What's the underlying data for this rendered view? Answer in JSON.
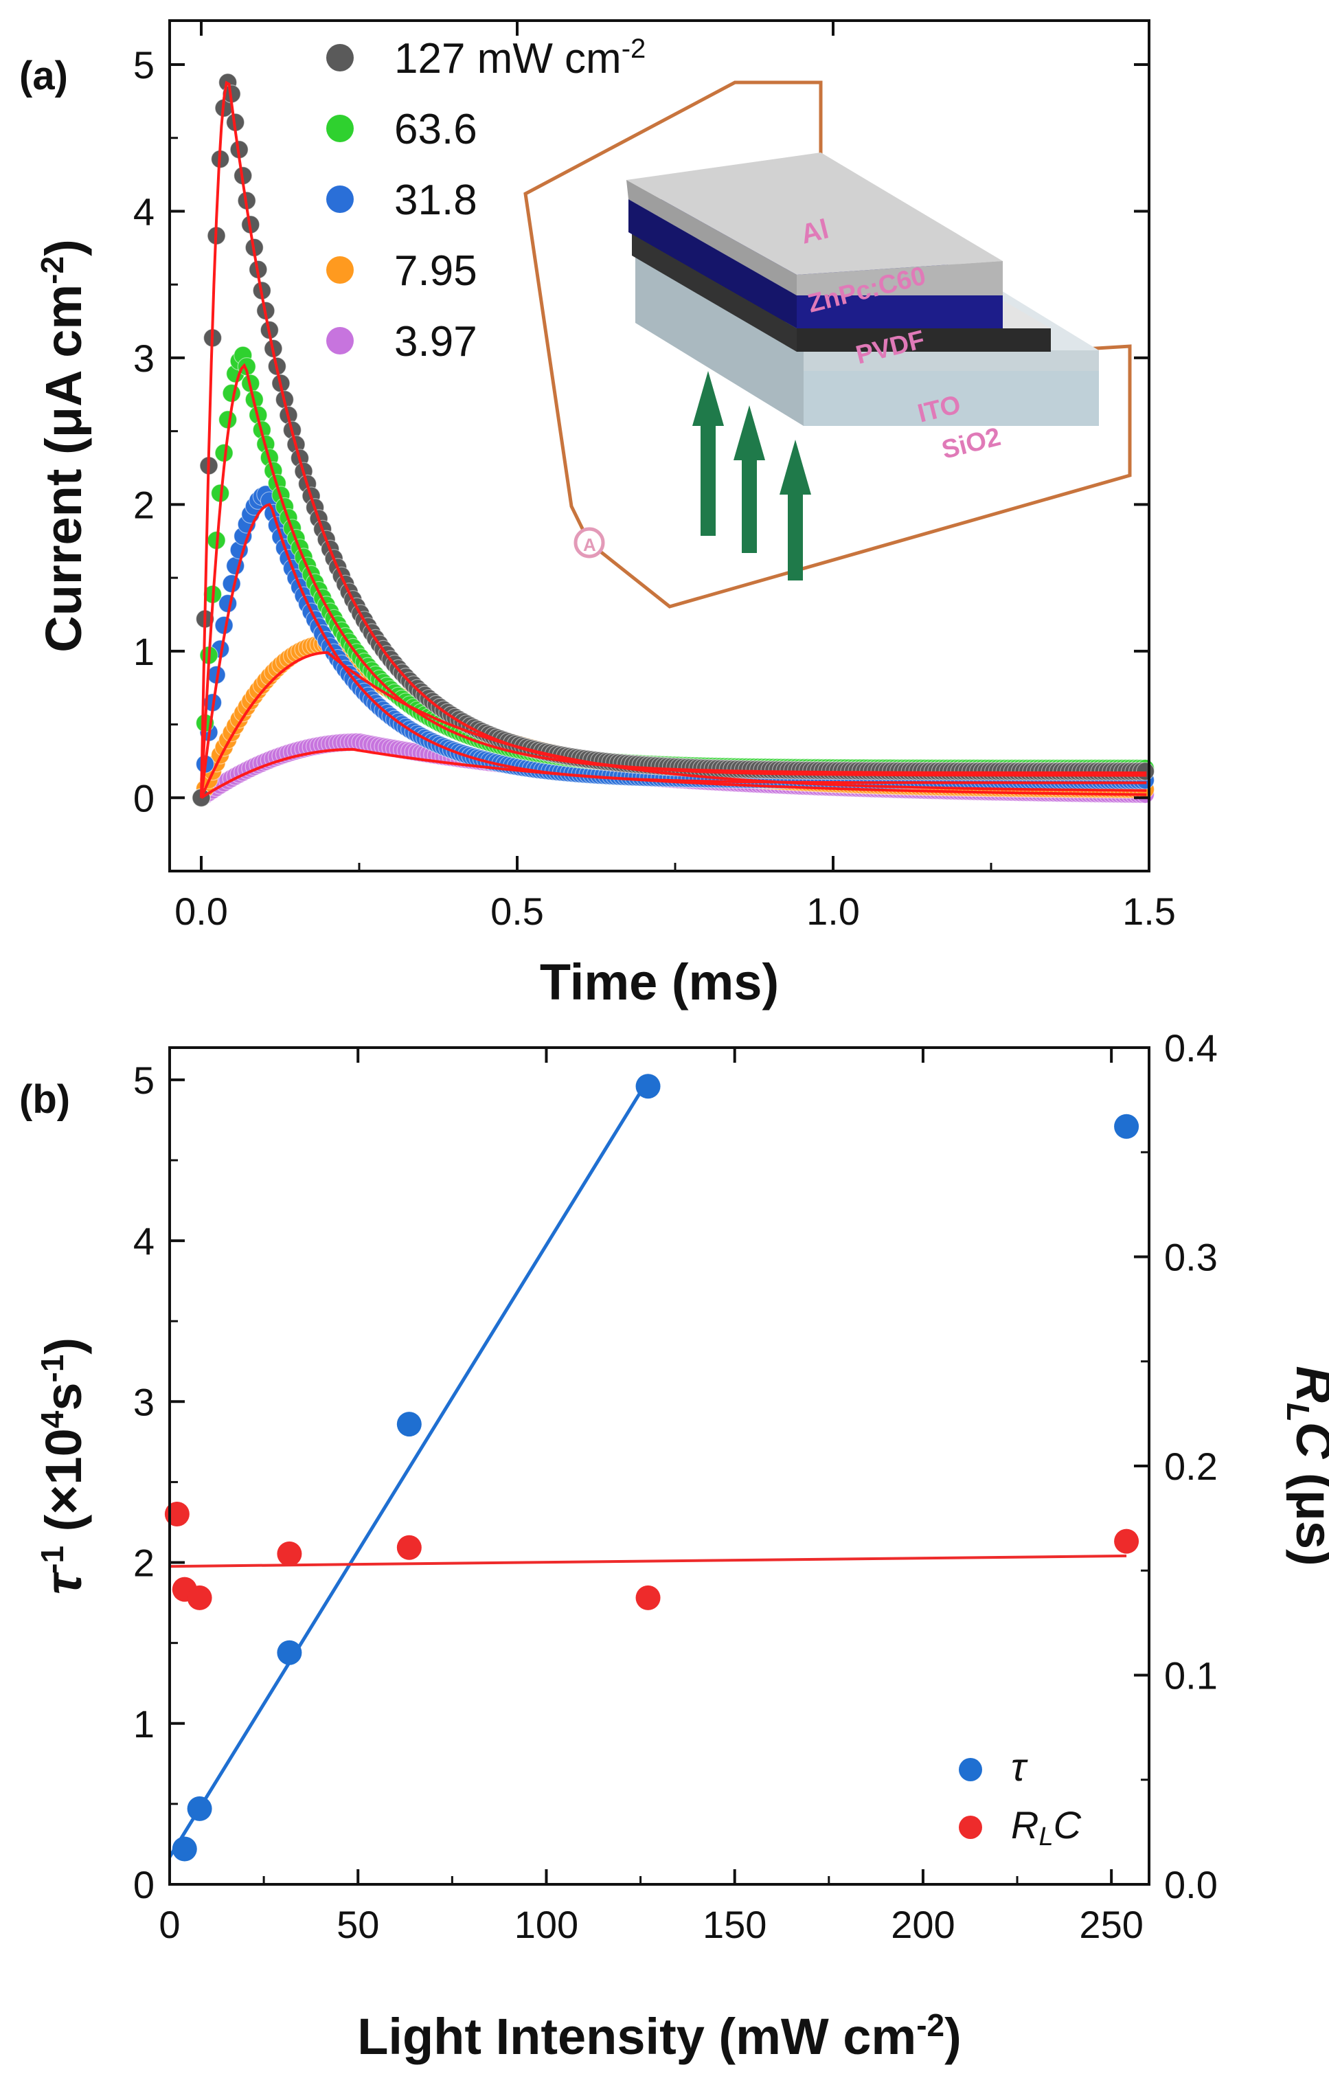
{
  "colors": {
    "black": "#111111",
    "series_127": "#5a5a5a",
    "series_63": "#2fd12f",
    "series_31": "#2a6fd8",
    "series_7": "#ff9a1f",
    "series_3": "#c774de",
    "fit": "#ff1a1a",
    "tau": "#1f6fd1",
    "rlc": "#ee2b2b",
    "wire": "#c8743d",
    "al_layer": "#c6c6c6",
    "active_layer": "#1d1d8a",
    "pvdf_layer": "#d6d6d6",
    "ito_layer": "#c9d3d8",
    "sio2_layer": "#bfd0d8",
    "arrow": "#1f7a4a",
    "label_pink": "#e07ab8"
  },
  "chart_data": [
    {
      "panel": "(a)",
      "type": "scatter",
      "title": "",
      "xlabel": "Time (ms)",
      "ylabel": "Current (μA cm-2)",
      "ylabel_parts": {
        "base": "Current (μA cm",
        "sup": "-2",
        "end": ")"
      },
      "xlim": [
        -0.05,
        1.5
      ],
      "ylim": [
        -0.5,
        5.3
      ],
      "xticks": [
        0.0,
        0.5,
        1.0,
        1.5
      ],
      "xtick_labels": [
        "0.0",
        "0.5",
        "1.0",
        "1.5"
      ],
      "yticks": [
        0,
        1,
        2,
        3,
        4,
        5
      ],
      "ytick_labels": [
        "0",
        "1",
        "2",
        "3",
        "4",
        "5"
      ],
      "grid": false,
      "legend_position": "top-left",
      "legend_unit": {
        "base": "mW cm",
        "sup": "-2"
      },
      "series": [
        {
          "name": "127",
          "key": "s127",
          "peak": 4.9,
          "t_peak": 0.045,
          "baseline": 0.18,
          "decay": 0.14,
          "fit_peak": 4.9,
          "fit_t_peak": 0.043
        },
        {
          "name": "63.6",
          "key": "s63",
          "peak": 3.02,
          "t_peak": 0.068,
          "baseline": 0.2,
          "decay": 0.14,
          "fit_peak": 2.95,
          "fit_t_peak": 0.07
        },
        {
          "name": "31.8",
          "key": "s31",
          "peak": 2.07,
          "t_peak": 0.105,
          "baseline": 0.12,
          "decay": 0.13,
          "fit_peak": 2.0,
          "fit_t_peak": 0.11
        },
        {
          "name": "7.95",
          "key": "s7",
          "peak": 1.05,
          "t_peak": 0.2,
          "baseline": 0.05,
          "decay": 0.26,
          "fit_peak": 0.99,
          "fit_t_peak": 0.2
        },
        {
          "name": "3.97",
          "key": "s3",
          "peak": 0.38,
          "t_peak": 0.25,
          "baseline": 0.0,
          "decay": 0.45,
          "fit_peak": 0.33,
          "fit_t_peak": 0.24
        }
      ],
      "inset_labels": [
        "Al",
        "ZnPc:C60",
        "PVDF",
        "ITO",
        "SiO2"
      ]
    },
    {
      "panel": "(b)",
      "type": "scatter",
      "title": "",
      "xlabel": "Light Intensity (mW cm-2)",
      "xlabel_parts": {
        "base": "Light Intensity (mW cm",
        "sup": "-2",
        "end": ")"
      },
      "ylabel_left": "τ-1 (×104s-1)",
      "ylabel_right": "RLC (μs)",
      "xlim": [
        0,
        260
      ],
      "ylim_left": [
        0,
        5.2
      ],
      "ylim_right": [
        0,
        0.4
      ],
      "xticks": [
        0,
        50,
        100,
        150,
        200,
        250
      ],
      "xtick_labels": [
        "0",
        "50",
        "100",
        "150",
        "200",
        "250"
      ],
      "yticks_left": [
        0,
        1,
        2,
        3,
        4,
        5
      ],
      "ytick_labels_left": [
        "0",
        "1",
        "2",
        "3",
        "4",
        "5"
      ],
      "yticks_right": [
        0.0,
        0.1,
        0.2,
        0.3,
        0.4
      ],
      "ytick_labels_right": [
        "0.0",
        "0.1",
        "0.2",
        "0.3",
        "0.4"
      ],
      "grid": false,
      "legend_position": "bottom-right",
      "series": [
        {
          "name": "τ",
          "axis": "left",
          "x": [
            3.97,
            7.95,
            31.8,
            63.6,
            127,
            254
          ],
          "y": [
            0.22,
            0.47,
            1.44,
            2.86,
            4.96,
            4.71
          ],
          "fit": {
            "x": [
              0,
              127
            ],
            "y": [
              0.17,
              5.0
            ]
          }
        },
        {
          "name": "RLC",
          "axis": "right",
          "x": [
            1.98,
            3.97,
            7.95,
            31.8,
            63.6,
            127,
            254
          ],
          "y": [
            0.177,
            0.141,
            0.137,
            0.158,
            0.161,
            0.137,
            0.164
          ],
          "fit": {
            "x": [
              0,
              254
            ],
            "y": [
              0.152,
              0.157
            ]
          }
        }
      ]
    }
  ]
}
